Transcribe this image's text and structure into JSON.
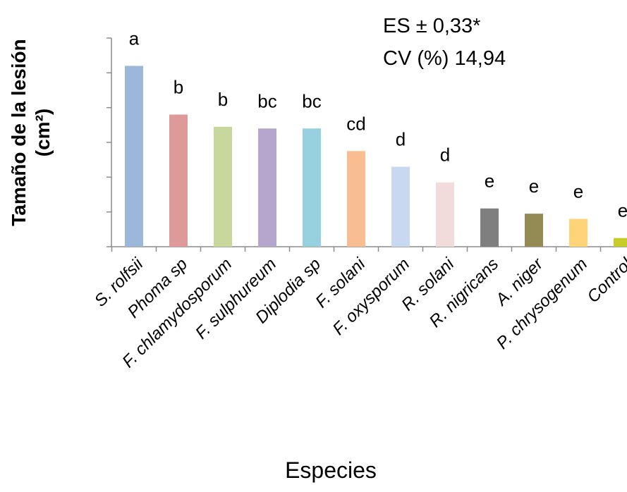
{
  "chart_data": {
    "type": "bar",
    "xlabel": "Especies",
    "ylabel_line1": "Tamaño de la lesión",
    "ylabel_line2": "(cm²)",
    "ylim": [
      0,
      12
    ],
    "y_ticks": [
      0,
      2,
      4,
      6,
      8,
      10,
      12
    ],
    "grid": false,
    "legend": "none",
    "annotations": {
      "es": "ES ± 0,33*",
      "cv": "CV (%) 14,94"
    },
    "categories": [
      "S. rolfsii",
      "Phoma sp",
      "F. chlamydosporum",
      "F. sulphureum",
      "Diplodia sp",
      "F. solani",
      "F. oxysporum",
      "R. solani",
      "R. nigricans",
      "A. niger",
      "P. chrysogenum",
      "Control"
    ],
    "values": [
      10.4,
      7.6,
      6.9,
      6.8,
      6.8,
      5.5,
      4.6,
      3.7,
      2.2,
      1.9,
      1.6,
      0.5
    ],
    "significance": [
      "a",
      "b",
      "b",
      "bc",
      "bc",
      "cd",
      "d",
      "d",
      "e",
      "e",
      "e",
      "e"
    ],
    "colors": [
      "#9bb7d9",
      "#de9a98",
      "#c8d89c",
      "#b6a6ce",
      "#97d0de",
      "#f8bd90",
      "#c8d8f0",
      "#f2dcdb",
      "#7f7f7f",
      "#948a54",
      "#ffd479",
      "#c8cc28"
    ]
  }
}
